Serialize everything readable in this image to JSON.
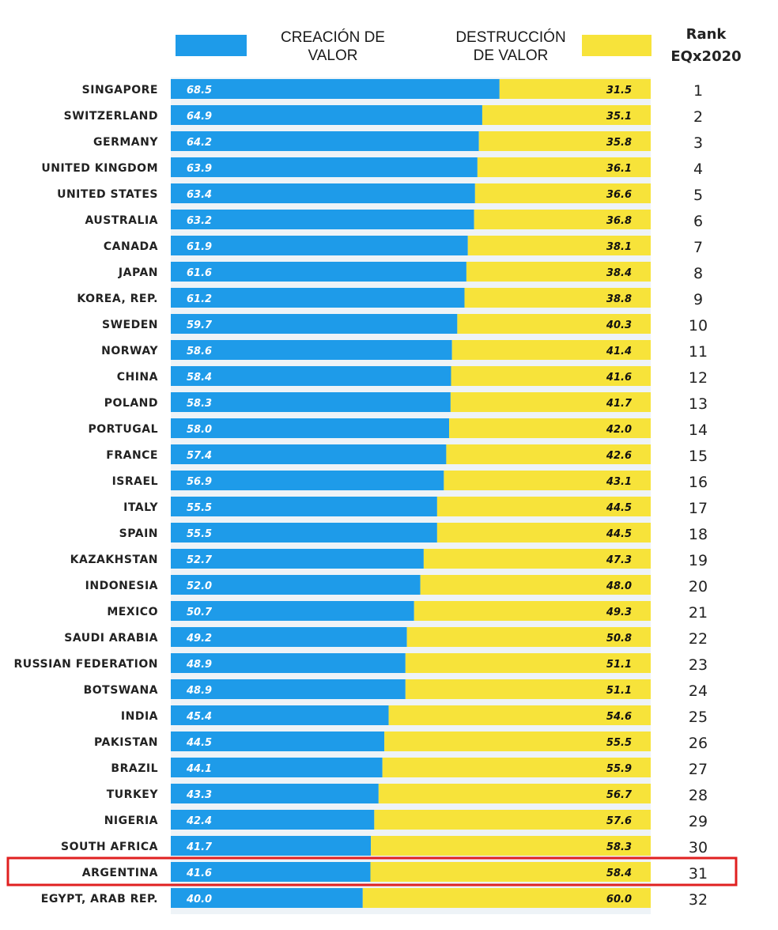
{
  "legend": {
    "creation": {
      "label": "CREACIÓN DE VALOR",
      "color": "#1e9be9"
    },
    "destruction": {
      "label": "DESTRUCCIÓN DE VALOR",
      "color": "#f7e33a"
    },
    "rank_line1": "Rank",
    "rank_line2": "EQx2020"
  },
  "highlight": {
    "category": "ARGENTINA",
    "color": "#e02020"
  },
  "chart_data": {
    "type": "bar",
    "orientation": "horizontal",
    "stacked": true,
    "xlim": [
      0,
      100
    ],
    "categories": [
      "SINGAPORE",
      "SWITZERLAND",
      "GERMANY",
      "UNITED KINGDOM",
      "UNITED STATES",
      "AUSTRALIA",
      "CANADA",
      "JAPAN",
      "KOREA, REP.",
      "SWEDEN",
      "NORWAY",
      "CHINA",
      "POLAND",
      "PORTUGAL",
      "FRANCE",
      "ISRAEL",
      "ITALY",
      "SPAIN",
      "KAZAKHSTAN",
      "INDONESIA",
      "MEXICO",
      "SAUDI ARABIA",
      "RUSSIAN FEDERATION",
      "BOTSWANA",
      "INDIA",
      "PAKISTAN",
      "BRAZIL",
      "TURKEY",
      "NIGERIA",
      "SOUTH AFRICA",
      "ARGENTINA",
      "EGYPT, ARAB REP."
    ],
    "series": [
      {
        "name": "CREACIÓN DE VALOR",
        "color": "#1e9be9",
        "values": [
          68.5,
          64.9,
          64.2,
          63.9,
          63.4,
          63.2,
          61.9,
          61.6,
          61.2,
          59.7,
          58.6,
          58.4,
          58.3,
          58.0,
          57.4,
          56.9,
          55.5,
          55.5,
          52.7,
          52.0,
          50.7,
          49.2,
          48.9,
          48.9,
          45.4,
          44.5,
          44.1,
          43.3,
          42.4,
          41.7,
          41.6,
          40.0
        ],
        "labels": [
          "68.5",
          "64.9",
          "64.2",
          "63.9",
          "63.4",
          "63.2",
          "61.9",
          "61.6",
          "61.2",
          "59.7",
          "58.6",
          "58.4",
          "58.3",
          "58.0",
          "57.4",
          "56.9",
          "55.5",
          "55.5",
          "52.7",
          "52.0",
          "50.7",
          "49.2",
          "48.9",
          "48.9",
          "45.4",
          "44.5",
          "44.1",
          "43.3",
          "42.4",
          "41.7",
          "41.6",
          "40.0"
        ]
      },
      {
        "name": "DESTRUCCIÓN DE VALOR",
        "color": "#f7e33a",
        "values": [
          31.5,
          35.1,
          35.8,
          36.1,
          36.6,
          36.8,
          38.1,
          38.4,
          38.8,
          40.3,
          41.4,
          41.6,
          41.7,
          42.0,
          42.6,
          43.1,
          44.5,
          44.5,
          47.3,
          48.0,
          49.3,
          50.8,
          51.1,
          51.1,
          54.6,
          55.5,
          55.9,
          56.7,
          57.6,
          58.3,
          58.4,
          60.0
        ],
        "labels": [
          "31.5",
          "35.1",
          "35.8",
          "36.1",
          "36.6",
          "36.8",
          "38.1",
          "38.4",
          "38.8",
          "40.3",
          "41.4",
          "41.6",
          "41.7",
          "42.0",
          "42.6",
          "43.1",
          "44.5",
          "44.5",
          "47.3",
          "48.0",
          "49.3",
          "50.8",
          "51.1",
          "51.1",
          "54.6",
          "55.5",
          "55.9",
          "56.7",
          "57.6",
          "58.3",
          "58.4",
          "60.0"
        ]
      }
    ],
    "ranks": [
      "1",
      "2",
      "3",
      "4",
      "5",
      "6",
      "7",
      "8",
      "9",
      "10",
      "11",
      "12",
      "13",
      "14",
      "15",
      "16",
      "17",
      "18",
      "19",
      "20",
      "21",
      "22",
      "23",
      "24",
      "25",
      "26",
      "27",
      "28",
      "29",
      "30",
      "31",
      "32"
    ]
  }
}
